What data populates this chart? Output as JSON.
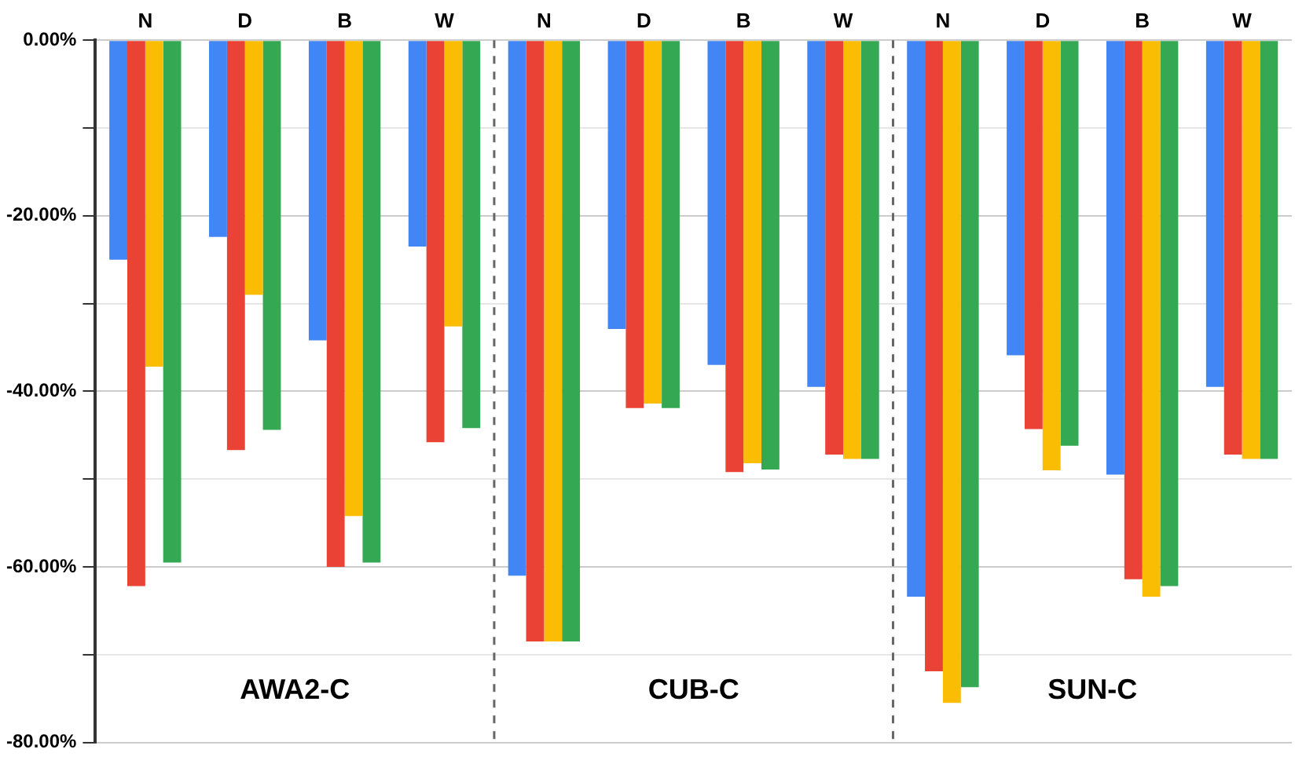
{
  "chart_data": {
    "type": "bar",
    "categories": [
      "N",
      "D",
      "B",
      "W",
      "N",
      "D",
      "B",
      "W",
      "N",
      "D",
      "B",
      "W"
    ],
    "series": [
      {
        "color": "#4285f4",
        "values": [
          -25,
          -22.4,
          -34.2,
          -23.5,
          -61,
          -32.9,
          -37,
          -39.5,
          -63.4,
          -35.9,
          -49.5,
          -39.5
        ]
      },
      {
        "color": "#ea4335",
        "values": [
          -62.2,
          -46.7,
          -60,
          -45.8,
          -68.5,
          -41.9,
          -49.2,
          -47.2,
          -71.9,
          -44.3,
          -61.4,
          -47.2
        ]
      },
      {
        "color": "#fbbc04",
        "values": [
          -37.2,
          -29,
          -54.2,
          -32.6,
          -68.5,
          -41.4,
          -48.2,
          -47.7,
          -75.5,
          -49,
          -63.4,
          -47.7
        ]
      },
      {
        "color": "#34a853",
        "values": [
          -59.5,
          -44.4,
          -59.5,
          -44.2,
          -68.5,
          -41.9,
          -48.9,
          -47.7,
          -73.7,
          -46.2,
          -62.2,
          -47.7
        ]
      }
    ],
    "ylim": [
      -80,
      0
    ],
    "yticks": [
      {
        "value": -80,
        "label": "-80.00%"
      },
      {
        "value": -70,
        "label": null
      },
      {
        "value": -60,
        "label": "-60.00%"
      },
      {
        "value": -50,
        "label": null
      },
      {
        "value": -40,
        "label": "-40.00%"
      },
      {
        "value": -30,
        "label": null
      },
      {
        "value": -20,
        "label": "-20.00%"
      },
      {
        "value": -10,
        "label": null
      },
      {
        "value": 0,
        "label": "0.00%"
      }
    ],
    "grid": "y",
    "legend": false,
    "annotations": [
      "AWA2-C",
      "CUB-C",
      "SUN-C"
    ]
  }
}
